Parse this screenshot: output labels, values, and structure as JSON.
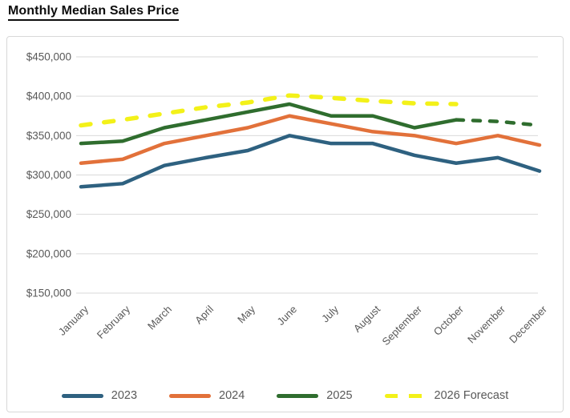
{
  "header": {
    "title": "Monthly Median Sales Price"
  },
  "chart_data": {
    "type": "line",
    "title": "Monthly Median Sales Price",
    "categories": [
      "January",
      "February",
      "March",
      "April",
      "May",
      "June",
      "July",
      "August",
      "September",
      "October",
      "November",
      "December"
    ],
    "y_axis": {
      "min": 150000,
      "max": 450000,
      "tick_step": 50000,
      "tick_values": [
        450000,
        400000,
        350000,
        300000,
        250000,
        200000,
        150000
      ],
      "tick_labels": [
        "$450,000",
        "$400,000",
        "$350,000",
        "$300,000",
        "$250,000",
        "$200,000",
        "$150,000"
      ]
    },
    "grid": true,
    "legend_position": "bottom",
    "series": [
      {
        "name": "2023",
        "color": "#2E6180",
        "line_style": "solid",
        "values": [
          285000,
          289000,
          312000,
          322000,
          331000,
          350000,
          340000,
          340000,
          325000,
          315000,
          322000,
          305000
        ]
      },
      {
        "name": "2024",
        "color": "#E2713A",
        "line_style": "solid",
        "values": [
          315000,
          320000,
          340000,
          350000,
          360000,
          375000,
          365000,
          355000,
          350000,
          340000,
          350000,
          338000
        ]
      },
      {
        "name": "2025",
        "color": "#2F6D2E",
        "line_style": "solid-then-dashed",
        "dashed_from_index": 9,
        "values": [
          340000,
          343000,
          360000,
          370000,
          380000,
          390000,
          375000,
          375000,
          360000,
          370000,
          368000,
          363000
        ]
      },
      {
        "name": "2026 Forecast",
        "color": "#F3F119",
        "line_style": "dashed",
        "values": [
          363000,
          370000,
          378000,
          386000,
          392000,
          401000,
          398000,
          394000,
          391000,
          390000
        ]
      }
    ],
    "colors": {
      "gridline": "#D9D9D9",
      "axis_text": "#595959",
      "title_text": "#0d0d0d"
    }
  }
}
